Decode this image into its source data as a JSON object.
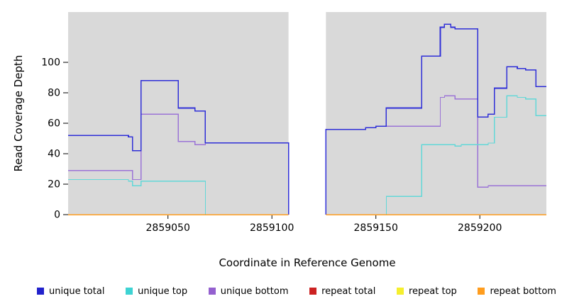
{
  "chart_data": {
    "type": "line",
    "step": true,
    "title": "",
    "xlabel": "Coordinate in Reference Genome",
    "ylabel": "Read Coverage Depth",
    "xlim": [
      2859002,
      2859232
    ],
    "ylim": [
      0,
      133
    ],
    "xticks": [
      2859050,
      2859100,
      2859150,
      2859200
    ],
    "yticks": [
      0,
      20,
      40,
      60,
      80,
      100
    ],
    "no_data_gap": [
      2859108,
      2859126
    ],
    "grid": false,
    "plot_bg": "#d9d9d9",
    "legend_position": "bottom",
    "series": [
      {
        "name": "repeat total",
        "color": "#cc2222",
        "width": 1.3,
        "segments": [
          [
            [
              2859002,
              0
            ],
            [
              2859108,
              0
            ]
          ],
          [
            [
              2859126,
              0
            ],
            [
              2859232,
              0
            ]
          ]
        ]
      },
      {
        "name": "repeat top",
        "color": "#f5ef2e",
        "width": 1.3,
        "segments": [
          [
            [
              2859002,
              0
            ],
            [
              2859108,
              0
            ]
          ],
          [
            [
              2859126,
              0
            ],
            [
              2859232,
              0
            ]
          ]
        ]
      },
      {
        "name": "unique bottom",
        "color": "#9b74d6",
        "width": 1.3,
        "segments": [
          [
            [
              2859002,
              29
            ],
            [
              2859033,
              23
            ],
            [
              2859037,
              66
            ],
            [
              2859055,
              48
            ],
            [
              2859063,
              46
            ],
            [
              2859068,
              47
            ],
            [
              2859108,
              47
            ],
            [
              2859108,
              0
            ]
          ],
          [
            [
              2859126,
              0
            ],
            [
              2859126,
              56
            ],
            [
              2859145,
              57
            ],
            [
              2859150,
              58
            ],
            [
              2859172,
              58
            ],
            [
              2859181,
              77
            ],
            [
              2859183,
              78
            ],
            [
              2859188,
              76
            ],
            [
              2859199,
              18
            ],
            [
              2859204,
              19
            ],
            [
              2859232,
              19
            ]
          ]
        ]
      },
      {
        "name": "unique top",
        "color": "#62d8d8",
        "width": 1.3,
        "segments": [
          [
            [
              2859002,
              23
            ],
            [
              2859031,
              22
            ],
            [
              2859033,
              19
            ],
            [
              2859037,
              22
            ],
            [
              2859068,
              22
            ],
            [
              2859068,
              0
            ],
            [
              2859108,
              0
            ]
          ],
          [
            [
              2859126,
              0
            ],
            [
              2859155,
              0
            ],
            [
              2859155,
              12
            ],
            [
              2859172,
              46
            ],
            [
              2859188,
              45
            ],
            [
              2859191,
              46
            ],
            [
              2859204,
              47
            ],
            [
              2859207,
              64
            ],
            [
              2859213,
              78
            ],
            [
              2859218,
              77
            ],
            [
              2859222,
              76
            ],
            [
              2859227,
              65
            ],
            [
              2859232,
              65
            ]
          ]
        ]
      },
      {
        "name": "unique total",
        "color": "#2f2fd8",
        "width": 1.6,
        "segments": [
          [
            [
              2859002,
              52
            ],
            [
              2859031,
              51
            ],
            [
              2859033,
              42
            ],
            [
              2859037,
              88
            ],
            [
              2859055,
              70
            ],
            [
              2859063,
              68
            ],
            [
              2859068,
              47
            ],
            [
              2859108,
              47
            ],
            [
              2859108,
              0
            ]
          ],
          [
            [
              2859126,
              0
            ],
            [
              2859126,
              56
            ],
            [
              2859145,
              57
            ],
            [
              2859150,
              58
            ],
            [
              2859155,
              70
            ],
            [
              2859172,
              104
            ],
            [
              2859181,
              123
            ],
            [
              2859183,
              125
            ],
            [
              2859186,
              123
            ],
            [
              2859188,
              122
            ],
            [
              2859199,
              64
            ],
            [
              2859204,
              66
            ],
            [
              2859207,
              83
            ],
            [
              2859213,
              97
            ],
            [
              2859218,
              96
            ],
            [
              2859222,
              95
            ],
            [
              2859227,
              84
            ],
            [
              2859232,
              84
            ]
          ]
        ]
      },
      {
        "name": "repeat bottom",
        "color": "#ff9d1e",
        "width": 1.5,
        "segments": [
          [
            [
              2859002,
              0
            ],
            [
              2859108,
              0
            ]
          ],
          [
            [
              2859126,
              0
            ],
            [
              2859232,
              0
            ]
          ]
        ]
      }
    ],
    "legend": [
      {
        "label": "unique total",
        "color": "#2222cc"
      },
      {
        "label": "unique top",
        "color": "#3ed3d3"
      },
      {
        "label": "unique bottom",
        "color": "#9460cf"
      },
      {
        "label": "repeat total",
        "color": "#cc2222"
      },
      {
        "label": "repeat top",
        "color": "#f5ef2e"
      },
      {
        "label": "repeat bottom",
        "color": "#ff9d1e"
      }
    ]
  }
}
